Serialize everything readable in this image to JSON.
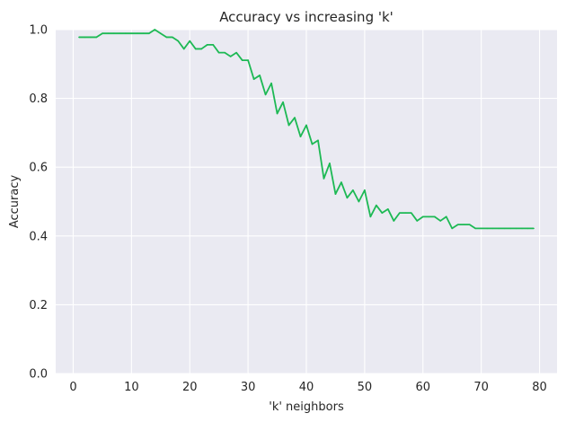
{
  "chart_data": {
    "type": "line",
    "title": "Accuracy vs increasing 'k'",
    "xlabel": "'k' neighbors",
    "ylabel": "Accuracy",
    "xlim": [
      -3,
      83
    ],
    "ylim": [
      0.0,
      1.0
    ],
    "xticks": [
      0,
      10,
      20,
      30,
      40,
      50,
      60,
      70,
      80
    ],
    "yticks": [
      0.0,
      0.2,
      0.4,
      0.6,
      0.8,
      1.0
    ],
    "ytick_labels": [
      "0.0",
      "0.2",
      "0.4",
      "0.6",
      "0.8",
      "1.0"
    ],
    "grid": true,
    "background": "#eaeaf2",
    "line_color": "#1db954",
    "series": [
      {
        "x": [
          1,
          2,
          3,
          4,
          5,
          6,
          7,
          8,
          9,
          10,
          11,
          12,
          13,
          14,
          15,
          16,
          17,
          18,
          19,
          20,
          21,
          22,
          23,
          24,
          25,
          26,
          27,
          28,
          29,
          30,
          31,
          32,
          33,
          34,
          35,
          36,
          37,
          38,
          39,
          40,
          41,
          42,
          43,
          44,
          45,
          46,
          47,
          48,
          49,
          50,
          51,
          52,
          53,
          54,
          55,
          56,
          57,
          58,
          59,
          60,
          61,
          62,
          63,
          64,
          65,
          66,
          67,
          68,
          69,
          70,
          71,
          72,
          73,
          74,
          75,
          76,
          77,
          78,
          79
        ],
        "values": [
          0.978,
          0.978,
          0.978,
          0.978,
          0.989,
          0.989,
          0.989,
          0.989,
          0.989,
          0.989,
          0.989,
          0.989,
          0.989,
          1.0,
          0.989,
          0.978,
          0.978,
          0.967,
          0.944,
          0.967,
          0.944,
          0.944,
          0.956,
          0.956,
          0.933,
          0.933,
          0.922,
          0.933,
          0.911,
          0.911,
          0.856,
          0.867,
          0.811,
          0.844,
          0.756,
          0.789,
          0.722,
          0.744,
          0.689,
          0.722,
          0.667,
          0.678,
          0.567,
          0.611,
          0.522,
          0.556,
          0.511,
          0.533,
          0.5,
          0.533,
          0.456,
          0.489,
          0.467,
          0.478,
          0.444,
          0.467,
          0.467,
          0.467,
          0.444,
          0.456,
          0.456,
          0.456,
          0.444,
          0.456,
          0.422,
          0.433,
          0.433,
          0.433,
          0.422,
          0.422,
          0.422,
          0.422,
          0.422,
          0.422,
          0.422,
          0.422,
          0.422,
          0.422,
          0.422
        ]
      }
    ]
  }
}
